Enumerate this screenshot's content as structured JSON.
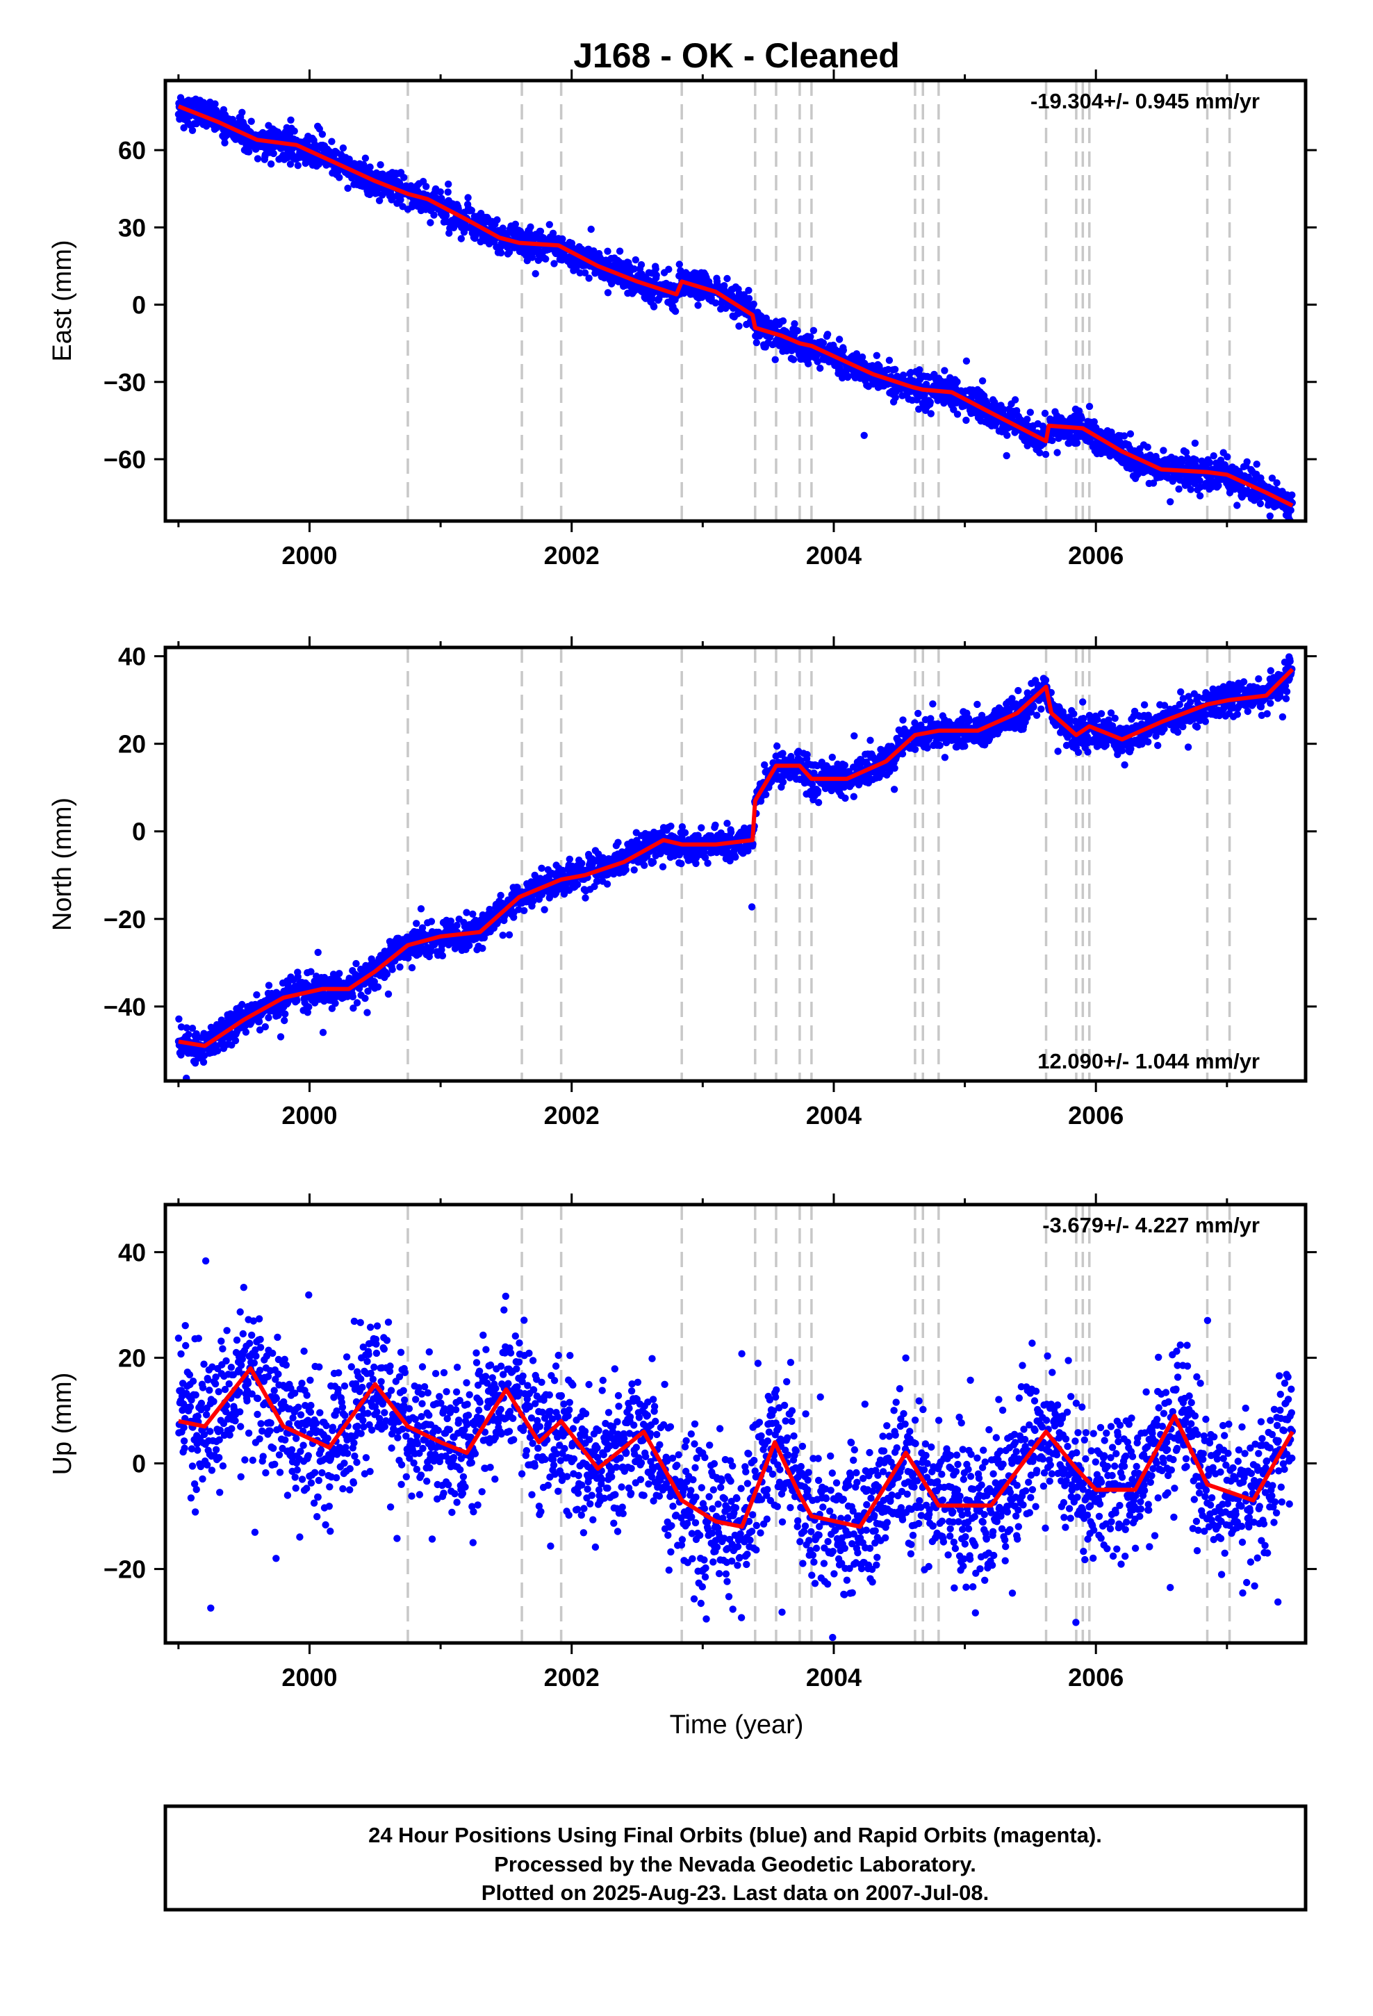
{
  "title": "J168  - OK - Cleaned",
  "xlabel": "Time (year)",
  "footer": {
    "line1": "24 Hour Positions Using Final Orbits (blue) and Rapid Orbits (magenta).",
    "line2": "Processed by the Nevada Geodetic Laboratory.",
    "line3": "Plotted on 2025-Aug-23. Last data on 2007-Jul-08."
  },
  "colors": {
    "points": "#0000ff",
    "model": "#ff0000",
    "steps": "#c8c8c8",
    "frame": "#000000"
  },
  "chart_data": [
    {
      "type": "scatter",
      "component": "east",
      "ylabel": "East (mm)",
      "rate_text": "-19.304+/- 0.945 mm/yr",
      "rate_position": "top-right",
      "xlim": [
        1998.9,
        2007.6
      ],
      "ylim": [
        -84,
        87
      ],
      "yticks": [
        -60,
        -30,
        0,
        30,
        60
      ],
      "xticks": [
        2000,
        2002,
        2004,
        2006
      ],
      "grid": false,
      "step_epochs": [
        2000.75,
        2001.62,
        2001.92,
        2002.84,
        2003.4,
        2003.56,
        2003.74,
        2003.83,
        2004.62,
        2004.68,
        2004.8,
        2005.62,
        2005.85,
        2005.9,
        2005.95,
        2006.85,
        2007.02
      ],
      "model": [
        [
          1999.0,
          77
        ],
        [
          1999.3,
          71
        ],
        [
          1999.6,
          64
        ],
        [
          1999.9,
          62
        ],
        [
          2000.2,
          55
        ],
        [
          2000.5,
          48
        ],
        [
          2000.75,
          43
        ],
        [
          2000.9,
          41
        ],
        [
          2001.2,
          33
        ],
        [
          2001.45,
          26
        ],
        [
          2001.6,
          24
        ],
        [
          2001.9,
          23
        ],
        [
          2002.2,
          15
        ],
        [
          2002.5,
          9
        ],
        [
          2002.8,
          4
        ],
        [
          2002.84,
          9
        ],
        [
          2003.1,
          5
        ],
        [
          2003.38,
          -4
        ],
        [
          2003.4,
          -9
        ],
        [
          2003.6,
          -12
        ],
        [
          2003.74,
          -15
        ],
        [
          2003.83,
          -16
        ],
        [
          2004.0,
          -20
        ],
        [
          2004.3,
          -27
        ],
        [
          2004.6,
          -32
        ],
        [
          2004.68,
          -33
        ],
        [
          2004.9,
          -34
        ],
        [
          2005.2,
          -42
        ],
        [
          2005.62,
          -53
        ],
        [
          2005.64,
          -47
        ],
        [
          2005.9,
          -48
        ],
        [
          2006.2,
          -57
        ],
        [
          2006.5,
          -64
        ],
        [
          2006.85,
          -65
        ],
        [
          2007.0,
          -66
        ],
        [
          2007.3,
          -73
        ],
        [
          2007.5,
          -78
        ]
      ],
      "noise_mm": 3
    },
    {
      "type": "scatter",
      "component": "north",
      "ylabel": "North (mm)",
      "rate_text": "12.090+/- 1.044 mm/yr",
      "rate_position": "bottom-right",
      "xlim": [
        1998.9,
        2007.6
      ],
      "ylim": [
        -57,
        42
      ],
      "yticks": [
        -40,
        -20,
        0,
        20,
        40
      ],
      "xticks": [
        2000,
        2002,
        2004,
        2006
      ],
      "grid": false,
      "step_epochs": [
        2000.75,
        2001.62,
        2001.92,
        2002.84,
        2003.4,
        2003.56,
        2003.74,
        2003.83,
        2004.62,
        2004.68,
        2004.8,
        2005.62,
        2005.85,
        2005.9,
        2005.95,
        2006.85,
        2007.02
      ],
      "model": [
        [
          1999.0,
          -48
        ],
        [
          1999.2,
          -49
        ],
        [
          1999.5,
          -43
        ],
        [
          1999.8,
          -38
        ],
        [
          2000.1,
          -36
        ],
        [
          2000.3,
          -36
        ],
        [
          2000.5,
          -32
        ],
        [
          2000.75,
          -26
        ],
        [
          2001.0,
          -24
        ],
        [
          2001.3,
          -23
        ],
        [
          2001.6,
          -15
        ],
        [
          2001.92,
          -11
        ],
        [
          2002.1,
          -10
        ],
        [
          2002.4,
          -7
        ],
        [
          2002.7,
          -2
        ],
        [
          2002.84,
          -3
        ],
        [
          2003.1,
          -3
        ],
        [
          2003.38,
          -2
        ],
        [
          2003.4,
          7
        ],
        [
          2003.56,
          15
        ],
        [
          2003.74,
          15
        ],
        [
          2003.83,
          12
        ],
        [
          2004.1,
          12
        ],
        [
          2004.4,
          16
        ],
        [
          2004.62,
          22
        ],
        [
          2004.8,
          23
        ],
        [
          2005.1,
          23
        ],
        [
          2005.4,
          27
        ],
        [
          2005.62,
          33
        ],
        [
          2005.66,
          27
        ],
        [
          2005.85,
          22
        ],
        [
          2005.95,
          24
        ],
        [
          2006.2,
          21
        ],
        [
          2006.5,
          25
        ],
        [
          2006.85,
          29
        ],
        [
          2007.02,
          30
        ],
        [
          2007.3,
          31
        ],
        [
          2007.5,
          37
        ]
      ],
      "noise_mm": 1.8
    },
    {
      "type": "scatter",
      "component": "up",
      "ylabel": "Up (mm)",
      "rate_text": "-3.679+/- 4.227 mm/yr",
      "rate_position": "top-right",
      "xlim": [
        1998.9,
        2007.6
      ],
      "ylim": [
        -34,
        49
      ],
      "yticks": [
        -20,
        0,
        20,
        40
      ],
      "xticks": [
        2000,
        2002,
        2004,
        2006
      ],
      "grid": false,
      "step_epochs": [
        2000.75,
        2001.62,
        2001.92,
        2002.84,
        2003.4,
        2003.56,
        2003.74,
        2003.83,
        2004.62,
        2004.68,
        2004.8,
        2005.62,
        2005.85,
        2005.9,
        2005.95,
        2006.85,
        2007.02
      ],
      "model": [
        [
          1999.0,
          8
        ],
        [
          1999.2,
          7
        ],
        [
          1999.55,
          18
        ],
        [
          1999.8,
          7
        ],
        [
          2000.15,
          3
        ],
        [
          2000.5,
          15
        ],
        [
          2000.75,
          7
        ],
        [
          2001.0,
          4
        ],
        [
          2001.2,
          2
        ],
        [
          2001.5,
          14
        ],
        [
          2001.75,
          4
        ],
        [
          2001.92,
          8
        ],
        [
          2002.2,
          -1
        ],
        [
          2002.55,
          6
        ],
        [
          2002.84,
          -7
        ],
        [
          2003.1,
          -11
        ],
        [
          2003.3,
          -12
        ],
        [
          2003.55,
          4
        ],
        [
          2003.74,
          -6
        ],
        [
          2003.83,
          -10
        ],
        [
          2004.2,
          -12
        ],
        [
          2004.55,
          2
        ],
        [
          2004.8,
          -8
        ],
        [
          2005.2,
          -8
        ],
        [
          2005.62,
          6
        ],
        [
          2005.85,
          -1
        ],
        [
          2006.0,
          -5
        ],
        [
          2006.3,
          -5
        ],
        [
          2006.6,
          9
        ],
        [
          2006.85,
          -4
        ],
        [
          2007.2,
          -7
        ],
        [
          2007.5,
          6
        ]
      ],
      "noise_mm": 6.5
    }
  ]
}
